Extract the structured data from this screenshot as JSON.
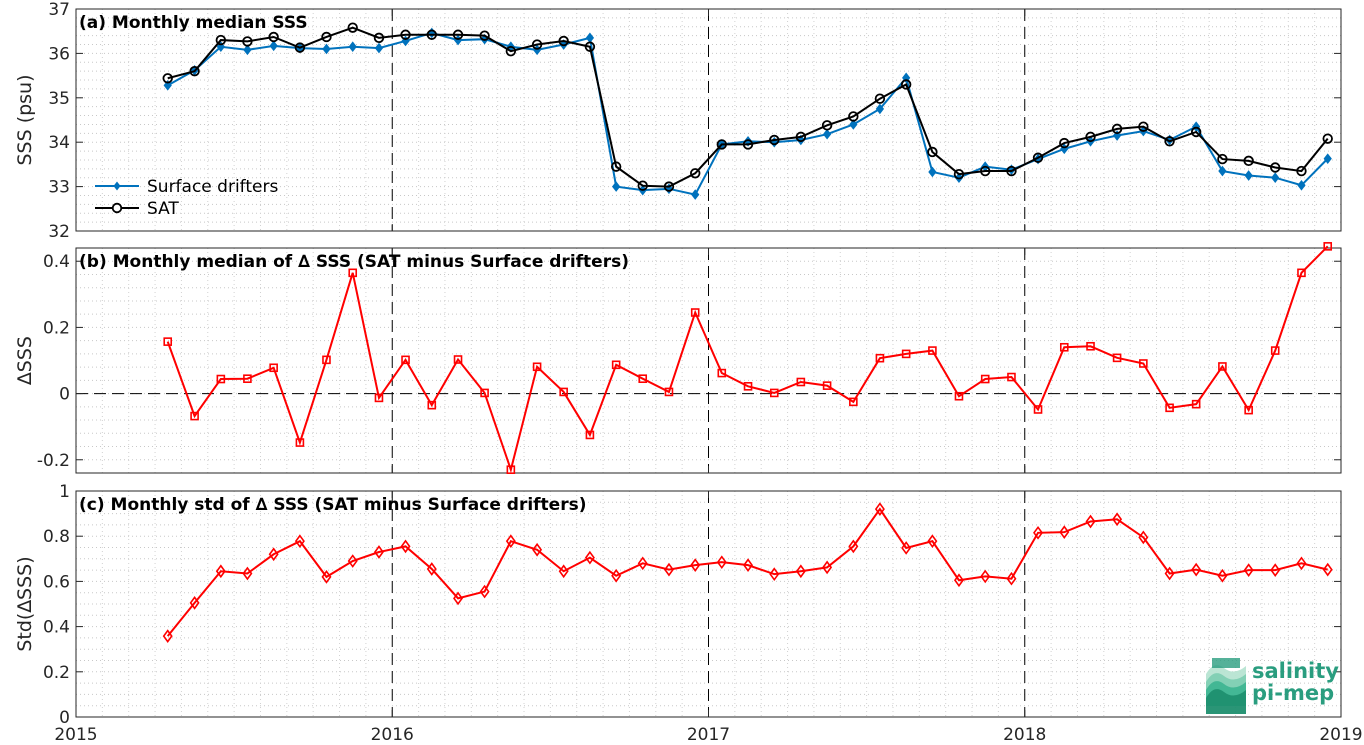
{
  "chart_data": [
    {
      "type": "line",
      "title": "(a) Monthly median SSS",
      "ylabel": "SSS (psu)",
      "xlim": [
        2015.0,
        2019.0
      ],
      "ylim": [
        32,
        37
      ],
      "yticks": [
        32,
        33,
        34,
        35,
        36,
        37
      ],
      "ytick_labels": [
        "32",
        "33",
        "34",
        "35",
        "36",
        "37"
      ],
      "yminor_step": 0.2,
      "grid": "minor-dotted",
      "legend_position": "lower-left",
      "series": [
        {
          "name": "Surface drifters",
          "color": "#0072bd",
          "marker": "filled-diamond",
          "x": [
            2015.29,
            2015.375,
            2015.458,
            2015.542,
            2015.625,
            2015.708,
            2015.792,
            2015.875,
            2015.958,
            2016.042,
            2016.125,
            2016.208,
            2016.292,
            2016.375,
            2016.458,
            2016.542,
            2016.625,
            2016.708,
            2016.792,
            2016.875,
            2016.958,
            2017.042,
            2017.125,
            2017.208,
            2017.292,
            2017.375,
            2017.458,
            2017.542,
            2017.625,
            2017.708,
            2017.792,
            2017.875,
            2017.958,
            2018.042,
            2018.125,
            2018.208,
            2018.292,
            2018.375,
            2018.458,
            2018.542,
            2018.625,
            2018.708,
            2018.792,
            2018.875,
            2018.958
          ],
          "values": [
            35.28,
            35.62,
            36.15,
            36.08,
            36.17,
            36.12,
            36.1,
            36.15,
            36.12,
            36.28,
            36.46,
            36.3,
            36.32,
            36.15,
            36.08,
            36.2,
            36.35,
            33.0,
            32.92,
            32.95,
            32.82,
            33.95,
            34.02,
            34.0,
            34.05,
            34.18,
            34.4,
            34.75,
            35.45,
            33.33,
            33.2,
            33.45,
            33.38,
            33.62,
            33.85,
            34.02,
            34.15,
            34.25,
            34.05,
            34.35,
            33.35,
            33.25,
            33.2,
            33.03,
            33.63
          ]
        },
        {
          "name": "SAT",
          "color": "#000000",
          "marker": "open-circle",
          "x": [
            2015.29,
            2015.375,
            2015.458,
            2015.542,
            2015.625,
            2015.708,
            2015.792,
            2015.875,
            2015.958,
            2016.042,
            2016.125,
            2016.208,
            2016.292,
            2016.375,
            2016.458,
            2016.542,
            2016.625,
            2016.708,
            2016.792,
            2016.875,
            2016.958,
            2017.042,
            2017.125,
            2017.208,
            2017.292,
            2017.375,
            2017.458,
            2017.542,
            2017.625,
            2017.708,
            2017.792,
            2017.875,
            2017.958,
            2018.042,
            2018.125,
            2018.208,
            2018.292,
            2018.375,
            2018.458,
            2018.542,
            2018.625,
            2018.708,
            2018.792,
            2018.875,
            2018.958
          ],
          "values": [
            35.44,
            35.6,
            36.3,
            36.27,
            36.37,
            36.13,
            36.37,
            36.58,
            36.35,
            36.42,
            36.42,
            36.42,
            36.4,
            36.05,
            36.2,
            36.28,
            36.15,
            33.45,
            33.02,
            33.0,
            33.3,
            33.95,
            33.95,
            34.05,
            34.12,
            34.38,
            34.58,
            34.98,
            35.3,
            33.78,
            33.28,
            33.35,
            33.35,
            33.65,
            33.98,
            34.12,
            34.3,
            34.35,
            34.02,
            34.23,
            33.62,
            33.58,
            33.43,
            33.35,
            34.08
          ]
        }
      ]
    },
    {
      "type": "line",
      "title": "(b) Monthly median of ∆ SSS (SAT minus Surface drifters)",
      "ylabel": "∆SSS",
      "xlim": [
        2015.0,
        2019.0
      ],
      "ylim": [
        -0.24,
        0.44
      ],
      "yticks": [
        -0.2,
        0,
        0.2,
        0.4
      ],
      "ytick_labels": [
        "-0.2",
        "0",
        "0.2",
        "0.4"
      ],
      "yminor_step": 0.04,
      "grid": "minor-dotted",
      "zero_line": true,
      "series": [
        {
          "name": "",
          "color": "#ff0000",
          "marker": "open-square",
          "x": [
            2015.29,
            2015.375,
            2015.458,
            2015.542,
            2015.625,
            2015.708,
            2015.792,
            2015.875,
            2015.958,
            2016.042,
            2016.125,
            2016.208,
            2016.292,
            2016.375,
            2016.458,
            2016.542,
            2016.625,
            2016.708,
            2016.792,
            2016.875,
            2016.958,
            2017.042,
            2017.125,
            2017.208,
            2017.292,
            2017.375,
            2017.458,
            2017.542,
            2017.625,
            2017.708,
            2017.792,
            2017.875,
            2017.958,
            2018.042,
            2018.125,
            2018.208,
            2018.292,
            2018.375,
            2018.458,
            2018.542,
            2018.625,
            2018.708,
            2018.792,
            2018.875,
            2018.958
          ],
          "values": [
            0.157,
            -0.068,
            0.044,
            0.045,
            0.078,
            -0.148,
            0.102,
            0.365,
            -0.013,
            0.102,
            -0.035,
            0.103,
            0.002,
            -0.23,
            0.081,
            0.005,
            -0.125,
            0.087,
            0.045,
            0.005,
            0.245,
            0.062,
            0.022,
            0.002,
            0.035,
            0.024,
            -0.025,
            0.107,
            0.12,
            0.13,
            -0.008,
            0.044,
            0.05,
            -0.048,
            0.14,
            0.143,
            0.108,
            0.091,
            -0.043,
            -0.032,
            0.082,
            -0.05,
            0.13,
            0.365,
            0.445
          ]
        }
      ]
    },
    {
      "type": "line",
      "title": "(c) Monthly std of ∆ SSS (SAT minus Surface drifters)",
      "ylabel": "Std(∆SSS)",
      "xlabel": "",
      "xlim": [
        2015.0,
        2019.0
      ],
      "xticks": [
        2015,
        2016,
        2017,
        2018,
        2019
      ],
      "xtick_labels": [
        "2015",
        "2016",
        "2017",
        "2018",
        "2019"
      ],
      "ylim": [
        0,
        1
      ],
      "yticks": [
        0,
        0.2,
        0.4,
        0.6,
        0.8,
        1
      ],
      "ytick_labels": [
        "0",
        "0.2",
        "0.4",
        "0.6",
        "0.8",
        "1"
      ],
      "yminor_step": 0.05,
      "grid": "minor-dotted",
      "series": [
        {
          "name": "",
          "color": "#ff0000",
          "marker": "open-diamond",
          "x": [
            2015.29,
            2015.375,
            2015.458,
            2015.542,
            2015.625,
            2015.708,
            2015.792,
            2015.875,
            2015.958,
            2016.042,
            2016.125,
            2016.208,
            2016.292,
            2016.375,
            2016.458,
            2016.542,
            2016.625,
            2016.708,
            2016.792,
            2016.875,
            2016.958,
            2017.042,
            2017.125,
            2017.208,
            2017.292,
            2017.375,
            2017.458,
            2017.542,
            2017.625,
            2017.708,
            2017.792,
            2017.875,
            2017.958,
            2018.042,
            2018.125,
            2018.208,
            2018.292,
            2018.375,
            2018.458,
            2018.542,
            2018.625,
            2018.708,
            2018.792,
            2018.875,
            2018.958
          ],
          "values": [
            0.358,
            0.505,
            0.645,
            0.635,
            0.72,
            0.778,
            0.62,
            0.69,
            0.73,
            0.755,
            0.655,
            0.525,
            0.555,
            0.778,
            0.74,
            0.645,
            0.705,
            0.625,
            0.68,
            0.652,
            0.672,
            0.685,
            0.672,
            0.632,
            0.645,
            0.662,
            0.755,
            0.92,
            0.748,
            0.778,
            0.605,
            0.622,
            0.612,
            0.815,
            0.818,
            0.865,
            0.875,
            0.795,
            0.635,
            0.652,
            0.625,
            0.65,
            0.65,
            0.68,
            0.652
          ]
        }
      ]
    }
  ],
  "logo": {
    "line1": "salinity",
    "line2": "pi-mep"
  }
}
